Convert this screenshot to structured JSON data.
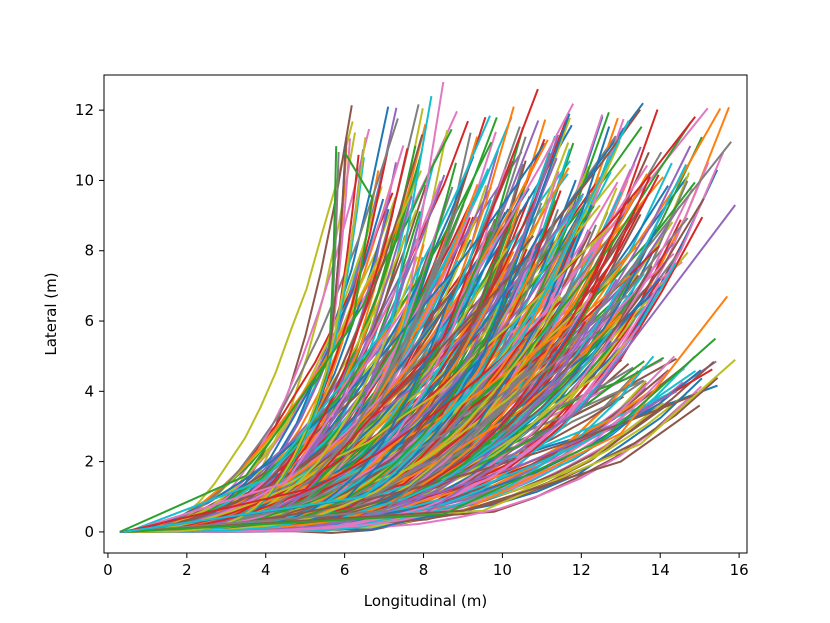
{
  "chart_data": {
    "type": "line",
    "title": "",
    "xlabel": "Longitudinal (m)",
    "ylabel": "Lateral (m)",
    "xlim": [
      -0.1,
      16.2
    ],
    "ylim": [
      -0.6,
      13.0
    ],
    "xticks": [
      "0",
      "2",
      "4",
      "6",
      "8",
      "10",
      "12",
      "14",
      "16"
    ],
    "yticks": [
      "0",
      "2",
      "4",
      "6",
      "8",
      "10",
      "12"
    ],
    "grid": false,
    "legend": "none",
    "palette": [
      "#1f77b4",
      "#ff7f0e",
      "#2ca02c",
      "#d62728",
      "#9467bd",
      "#8c564b",
      "#e377c2",
      "#7f7f7f",
      "#bcbd22",
      "#17becf"
    ],
    "series_count": 420,
    "series_pattern": "dense fan of trajectories starting near (0.3, 0) and curving upward to end points between x 6 and 15.8, y 3.5 and 12.8",
    "series": [
      {
        "x": [
          0.3,
          3.5,
          6.2,
          6.7,
          6.0
        ],
        "y": [
          0.0,
          1.6,
          5.9,
          9.5,
          10.8
        ]
      },
      {
        "x": [
          0.5,
          4.0,
          7.2,
          8.2
        ],
        "y": [
          0.0,
          1.5,
          6.0,
          12.4
        ]
      },
      {
        "x": [
          0.5,
          4.5,
          7.6,
          8.5
        ],
        "y": [
          0.0,
          1.4,
          6.5,
          12.8
        ]
      },
      {
        "x": [
          0.4,
          5.0,
          8.5,
          10.9
        ],
        "y": [
          0.0,
          1.2,
          5.5,
          12.6
        ]
      },
      {
        "x": [
          0.4,
          6.0,
          9.5,
          11.7
        ],
        "y": [
          0.0,
          0.9,
          5.0,
          11.9
        ]
      },
      {
        "x": [
          0.4,
          7.0,
          11.5,
          15.8
        ],
        "y": [
          0.0,
          0.6,
          5.0,
          11.1
        ]
      },
      {
        "x": [
          0.4,
          8.0,
          12.0,
          15.9
        ],
        "y": [
          0.0,
          0.5,
          3.5,
          9.3
        ]
      },
      {
        "x": [
          0.4,
          9.0,
          13.0,
          15.7
        ],
        "y": [
          0.0,
          0.6,
          2.8,
          6.7
        ]
      },
      {
        "x": [
          0.4,
          9.5,
          13.5,
          15.9
        ],
        "y": [
          0.0,
          0.6,
          2.5,
          4.9
        ]
      },
      {
        "x": [
          0.4,
          9.0,
          13.0,
          15.0
        ],
        "y": [
          0.0,
          0.6,
          2.0,
          3.6
        ]
      },
      {
        "x": [
          0.4,
          8.5,
          12.5,
          15.4
        ],
        "y": [
          0.0,
          0.5,
          2.6,
          5.5
        ]
      },
      {
        "x": [
          0.4,
          6.5,
          10.5,
          13.2
        ],
        "y": [
          0.0,
          1.0,
          5.5,
          11.7
        ]
      }
    ]
  }
}
